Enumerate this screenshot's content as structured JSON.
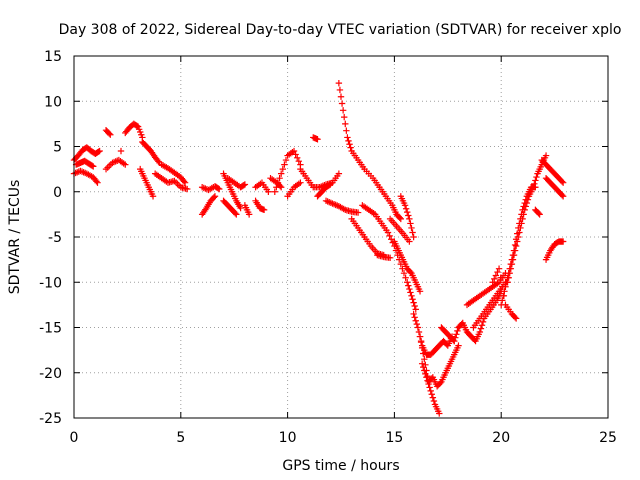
{
  "chart_data": {
    "type": "scatter",
    "title": "Day 308 of 2022, Sidereal Day-to-day VTEC variation (SDTVAR) for receiver xplo",
    "xlabel": "GPS time / hours",
    "ylabel": "SDTVAR / TECUs",
    "xlim": [
      0,
      25
    ],
    "ylim": [
      -25,
      15
    ],
    "xticks": [
      "0",
      "5",
      "10",
      "15",
      "20",
      "25"
    ],
    "yticks": [
      "15",
      "10",
      "5",
      "0",
      "-5",
      "-10",
      "-15",
      "-20",
      "-25"
    ],
    "grid": true,
    "marker": "plus",
    "color": "#ff0000",
    "series": [
      {
        "name": "s1",
        "x": [
          0.0,
          0.2,
          0.4,
          0.6,
          0.8,
          1.0,
          1.2
        ],
        "y": [
          3.5,
          4.0,
          4.6,
          4.9,
          4.5,
          4.2,
          4.5
        ]
      },
      {
        "name": "s2",
        "x": [
          0.0,
          0.3,
          0.6,
          0.9,
          1.1
        ],
        "y": [
          2.0,
          2.3,
          2.0,
          1.6,
          1.0
        ]
      },
      {
        "name": "s3",
        "x": [
          0.1,
          0.3,
          0.5,
          0.7,
          0.9
        ],
        "y": [
          3.0,
          3.2,
          3.4,
          3.1,
          2.8
        ]
      },
      {
        "name": "s4",
        "x": [
          1.5,
          1.7
        ],
        "y": [
          6.8,
          6.3
        ]
      },
      {
        "name": "s5",
        "x": [
          1.5,
          1.8,
          2.1,
          2.4
        ],
        "y": [
          2.5,
          3.2,
          3.5,
          3.0
        ]
      },
      {
        "name": "s6",
        "x": [
          2.2
        ],
        "y": [
          4.5
        ]
      },
      {
        "name": "s7",
        "x": [
          2.4,
          2.6,
          2.8,
          3.0,
          3.2
        ],
        "y": [
          6.5,
          7.1,
          7.5,
          7.2,
          6.0
        ]
      },
      {
        "name": "s8",
        "x": [
          3.2,
          3.4,
          3.6,
          3.8,
          4.0
        ],
        "y": [
          5.5,
          5.0,
          4.5,
          3.8,
          3.2
        ]
      },
      {
        "name": "s9",
        "x": [
          3.1,
          3.3,
          3.5,
          3.7
        ],
        "y": [
          2.5,
          1.5,
          0.5,
          -0.5
        ]
      },
      {
        "name": "s10",
        "x": [
          3.8,
          4.1,
          4.4,
          4.7,
          5.0,
          5.3
        ],
        "y": [
          2.0,
          1.5,
          1.0,
          1.2,
          0.5,
          0.3
        ]
      },
      {
        "name": "s11",
        "x": [
          4.1,
          4.4,
          4.7,
          5.0,
          5.2
        ],
        "y": [
          3.0,
          2.6,
          2.1,
          1.6,
          1.0
        ]
      },
      {
        "name": "s12",
        "x": [
          6.0,
          6.2,
          6.4,
          6.6
        ],
        "y": [
          -2.5,
          -1.8,
          -1.0,
          -0.5
        ]
      },
      {
        "name": "s13",
        "x": [
          6.0,
          6.3,
          6.6,
          6.8
        ],
        "y": [
          0.5,
          0.2,
          0.6,
          0.3
        ]
      },
      {
        "name": "s14",
        "x": [
          7.0,
          7.2,
          7.4,
          7.6,
          7.8
        ],
        "y": [
          2.0,
          1.0,
          0.0,
          -1.0,
          -1.8
        ]
      },
      {
        "name": "s15",
        "x": [
          7.0,
          7.2,
          7.4,
          7.6
        ],
        "y": [
          -1.0,
          -1.5,
          -2.0,
          -2.5
        ]
      },
      {
        "name": "s16",
        "x": [
          7.2,
          7.5,
          7.8,
          8.0
        ],
        "y": [
          1.5,
          1.0,
          0.5,
          0.8
        ]
      },
      {
        "name": "s17",
        "x": [
          8.0,
          8.2
        ],
        "y": [
          -1.5,
          -2.5
        ]
      },
      {
        "name": "s18",
        "x": [
          8.5,
          8.8,
          9.1
        ],
        "y": [
          0.5,
          1.0,
          0.0
        ]
      },
      {
        "name": "s19",
        "x": [
          8.5,
          8.7,
          8.9
        ],
        "y": [
          -1.0,
          -1.8,
          -2.0
        ]
      },
      {
        "name": "s20",
        "x": [
          9.2,
          9.5,
          9.7
        ],
        "y": [
          1.5,
          1.0,
          0.5
        ]
      },
      {
        "name": "s21",
        "x": [
          9.4,
          9.7,
          10.0,
          10.3,
          10.6
        ],
        "y": [
          0.0,
          2.0,
          4.0,
          4.5,
          3.0
        ]
      },
      {
        "name": "s22",
        "x": [
          10.0,
          10.3,
          10.6
        ],
        "y": [
          -0.5,
          0.5,
          1.0
        ]
      },
      {
        "name": "s23",
        "x": [
          10.6,
          10.9,
          11.2,
          11.5,
          11.8,
          12.1,
          12.4
        ],
        "y": [
          2.5,
          1.5,
          0.5,
          0.5,
          0.8,
          1.0,
          2.0
        ]
      },
      {
        "name": "s24",
        "x": [
          11.2,
          11.4
        ],
        "y": [
          6.0,
          5.8
        ]
      },
      {
        "name": "s25",
        "x": [
          11.4,
          11.6,
          11.8,
          12.0
        ],
        "y": [
          -0.5,
          0.0,
          0.5,
          0.8
        ]
      },
      {
        "name": "s26",
        "x": [
          11.8,
          12.1,
          12.4,
          12.7,
          13.0,
          13.3
        ],
        "y": [
          -1.0,
          -1.3,
          -1.6,
          -2.0,
          -2.2,
          -2.3
        ]
      },
      {
        "name": "s27",
        "x": [
          12.4,
          12.6,
          12.8,
          13.0,
          13.3,
          13.6,
          14.0,
          14.3,
          14.6,
          14.9,
          15.1,
          15.3
        ],
        "y": [
          12.0,
          9.0,
          6.0,
          4.5,
          3.5,
          2.5,
          1.5,
          0.5,
          -0.5,
          -1.5,
          -2.5,
          -3.0
        ]
      },
      {
        "name": "s28",
        "x": [
          13.0,
          13.3,
          13.6,
          13.9,
          14.2,
          14.5
        ],
        "y": [
          -3.0,
          -4.0,
          -5.0,
          -6.0,
          -6.8,
          -7.0
        ]
      },
      {
        "name": "s29",
        "x": [
          13.5,
          13.8,
          14.1,
          14.4,
          14.7,
          15.0,
          15.3,
          15.6,
          15.8,
          16.0
        ],
        "y": [
          -1.5,
          -2.0,
          -2.5,
          -3.5,
          -4.5,
          -6.0,
          -8.0,
          -10.0,
          -11.5,
          -13.0
        ]
      },
      {
        "name": "s30",
        "x": [
          14.2,
          14.5,
          14.8
        ],
        "y": [
          -7.0,
          -7.2,
          -7.3
        ]
      },
      {
        "name": "s31",
        "x": [
          14.8,
          15.1,
          15.4,
          15.7
        ],
        "y": [
          -3.0,
          -3.8,
          -4.6,
          -5.5
        ]
      },
      {
        "name": "s32",
        "x": [
          15.0,
          15.2,
          15.4,
          15.6,
          15.8,
          16.0,
          16.2
        ],
        "y": [
          -5.5,
          -6.5,
          -7.5,
          -8.5,
          -9.0,
          -10.0,
          -11.0
        ]
      },
      {
        "name": "s33",
        "x": [
          15.3,
          15.5,
          15.7,
          15.9
        ],
        "y": [
          -0.5,
          -1.5,
          -3.0,
          -5.0
        ]
      },
      {
        "name": "s34",
        "x": [
          15.9,
          16.1,
          16.3,
          16.5,
          16.7,
          16.9,
          17.1,
          17.3,
          17.5,
          17.7
        ],
        "y": [
          -13.5,
          -15.0,
          -17.0,
          -18.0,
          -18.0,
          -17.5,
          -17.0,
          -16.5,
          -17.0,
          -16.0
        ]
      },
      {
        "name": "s35",
        "x": [
          16.3,
          16.5,
          16.7,
          16.9,
          17.1
        ],
        "y": [
          -19.0,
          -20.5,
          -22.0,
          -23.5,
          -24.5
        ]
      },
      {
        "name": "s36",
        "x": [
          16.2,
          16.4,
          16.6,
          16.8,
          17.0,
          17.2,
          17.4,
          17.6,
          17.8,
          18.0
        ],
        "y": [
          -16.0,
          -18.5,
          -21.0,
          -20.5,
          -21.5,
          -21.0,
          -20.0,
          -19.0,
          -18.0,
          -17.0
        ]
      },
      {
        "name": "s37",
        "x": [
          17.2,
          17.4,
          17.6,
          17.8
        ],
        "y": [
          -15.0,
          -15.5,
          -16.0,
          -16.5
        ]
      },
      {
        "name": "s38",
        "x": [
          17.8,
          18.0,
          18.2,
          18.4,
          18.6,
          18.8,
          19.0,
          19.2,
          19.5,
          19.8,
          20.0
        ],
        "y": [
          -16.5,
          -15.0,
          -14.5,
          -15.5,
          -16.0,
          -16.5,
          -15.5,
          -14.0,
          -13.0,
          -12.0,
          -11.0
        ]
      },
      {
        "name": "s39",
        "x": [
          18.4,
          18.7,
          19.0,
          19.3,
          19.6,
          19.9,
          20.2
        ],
        "y": [
          -12.5,
          -12.0,
          -11.5,
          -11.0,
          -10.5,
          -10.0,
          -9.0
        ]
      },
      {
        "name": "s40",
        "x": [
          18.7,
          19.0,
          19.3,
          19.6,
          19.9,
          20.2
        ],
        "y": [
          -15.0,
          -14.0,
          -13.0,
          -12.0,
          -11.0,
          -10.0
        ]
      },
      {
        "name": "s41",
        "x": [
          19.6,
          19.9,
          20.2,
          20.5,
          20.7
        ],
        "y": [
          -10.0,
          -8.5,
          -12.5,
          -13.5,
          -14.0
        ]
      },
      {
        "name": "s42",
        "x": [
          20.0,
          20.2,
          20.4,
          20.6,
          20.8,
          21.0,
          21.2,
          21.4,
          21.6
        ],
        "y": [
          -12.5,
          -10.5,
          -8.5,
          -6.5,
          -4.0,
          -2.0,
          -0.5,
          0.5,
          0.5
        ]
      },
      {
        "name": "s43",
        "x": [
          20.3,
          20.5,
          20.7,
          20.9,
          21.1,
          21.3,
          21.5,
          21.7,
          21.9,
          22.1
        ],
        "y": [
          -10.0,
          -8.0,
          -6.0,
          -4.0,
          -2.0,
          -0.5,
          0.5,
          2.0,
          3.0,
          4.0
        ]
      },
      {
        "name": "s44",
        "x": [
          21.6,
          21.8
        ],
        "y": [
          -2.0,
          -2.5
        ]
      },
      {
        "name": "s45",
        "x": [
          21.9,
          22.1,
          22.3,
          22.5,
          22.7,
          22.9
        ],
        "y": [
          3.5,
          3.0,
          2.5,
          2.0,
          1.5,
          1.0
        ]
      },
      {
        "name": "s46",
        "x": [
          22.1,
          22.3,
          22.5,
          22.7,
          22.9
        ],
        "y": [
          1.5,
          1.0,
          0.5,
          0.0,
          -0.5
        ]
      },
      {
        "name": "s47",
        "x": [
          22.1,
          22.3,
          22.5,
          22.7,
          22.9
        ],
        "y": [
          -7.5,
          -6.5,
          -5.8,
          -5.5,
          -5.5
        ]
      }
    ]
  }
}
